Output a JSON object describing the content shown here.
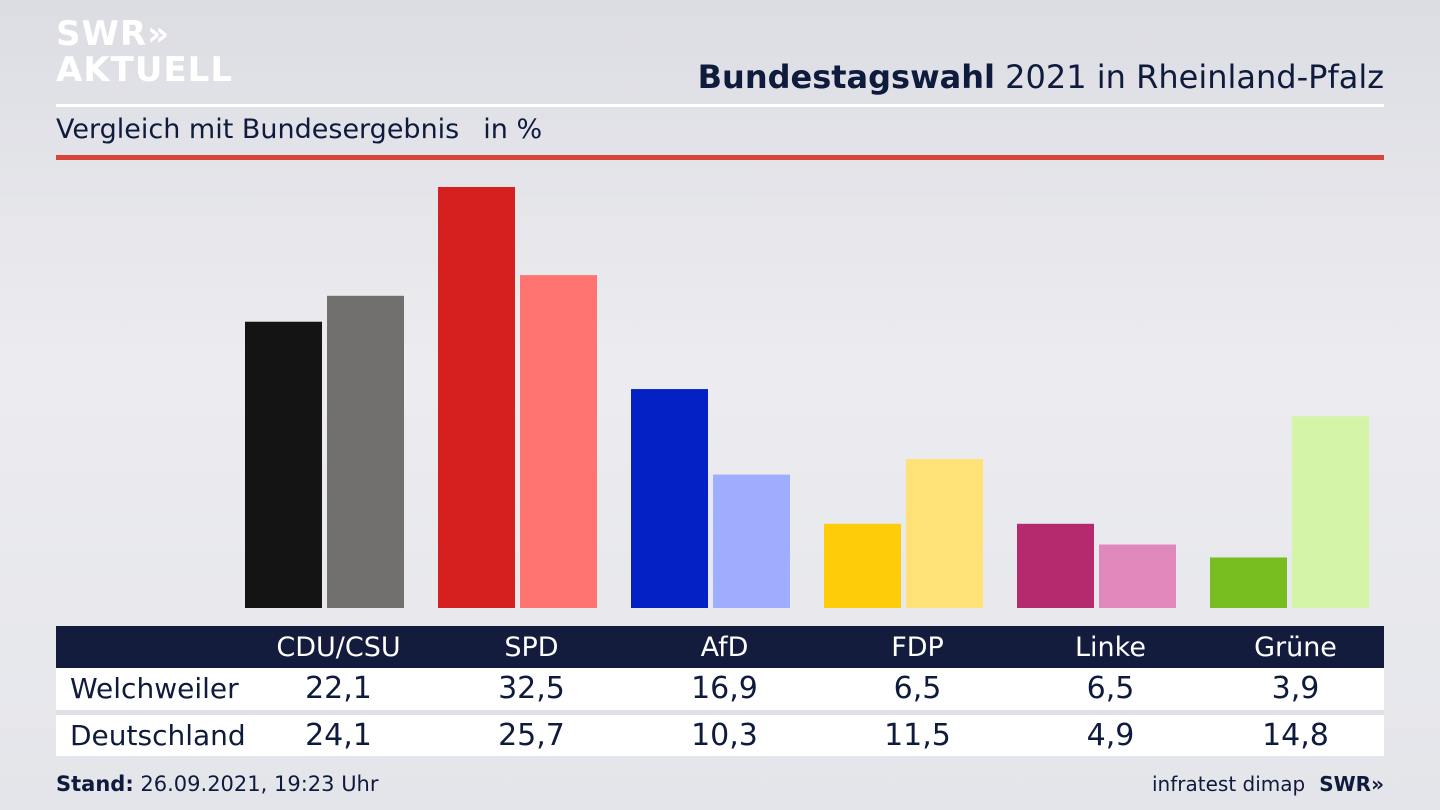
{
  "brand": {
    "line1": "SWR»",
    "line2": "AKTUELL"
  },
  "header": {
    "title_bold": "Bundestagswahl",
    "title_rest": "2021 in Rheinland-Pfalz"
  },
  "subheader": {
    "text": "Vergleich mit Bundesergebnis",
    "unit": "in %"
  },
  "chart_data": {
    "type": "bar",
    "categories": [
      "CDU/CSU",
      "SPD",
      "AfD",
      "FDP",
      "Linke",
      "Grüne"
    ],
    "series": [
      {
        "name": "Welchweiler",
        "values": [
          22.1,
          32.5,
          16.9,
          6.5,
          6.5,
          3.9
        ],
        "colors": [
          "#141414",
          "#d61f1f",
          "#0321c4",
          "#ffcc0a",
          "#b52a6f",
          "#78bd20"
        ]
      },
      {
        "name": "Deutschland",
        "values": [
          24.1,
          25.7,
          10.3,
          11.5,
          4.9,
          14.8
        ],
        "colors": [
          "#72706f",
          "#ff7370",
          "#9fadff",
          "#fee177",
          "#e087bb",
          "#d4f5a7"
        ]
      }
    ],
    "value_labels": {
      "Welchweiler": [
        "22,1",
        "32,5",
        "16,9",
        "6,5",
        "6,5",
        "3,9"
      ],
      "Deutschland": [
        "24,1",
        "25,7",
        "10,3",
        "11,5",
        "4,9",
        "14,8"
      ]
    },
    "ylim": [
      0,
      32.5
    ],
    "grid": false,
    "legend": "table-below"
  },
  "footer": {
    "stand_label": "Stand:",
    "stand_value": "26.09.2021, 19:23 Uhr",
    "source": "infratest dimap",
    "brand": "SWR»"
  }
}
